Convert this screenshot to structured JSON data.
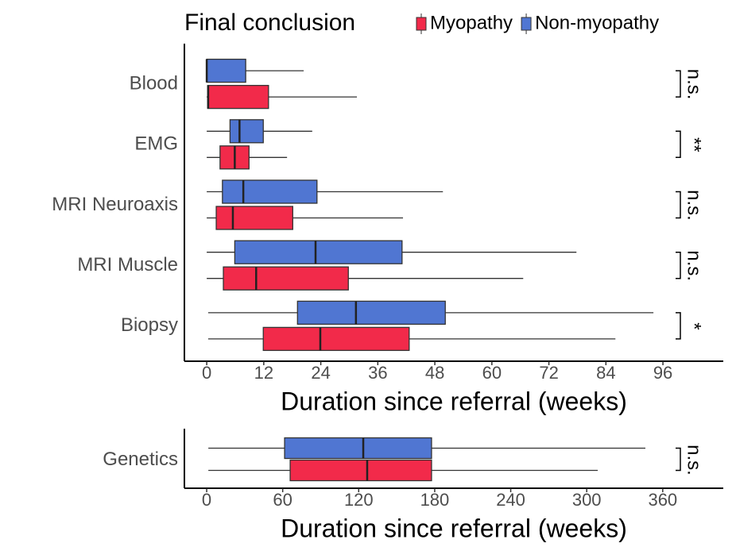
{
  "chart_data": [
    {
      "type": "boxplot",
      "legend_title": "Final conclusion",
      "categories": [
        "Blood",
        "EMG",
        "MRI Neuroaxis",
        "MRI Muscle",
        "Biopsy"
      ],
      "series": [
        {
          "name": "Myopathy",
          "color": "#f22a4a",
          "min": [
            0,
            0,
            0,
            0,
            0.3
          ],
          "q1": [
            0.2,
            2.8,
            2.0,
            3.5,
            11.9
          ],
          "median": [
            0.3,
            5.9,
            5.5,
            10.4,
            23.9
          ],
          "q3": [
            13.0,
            8.9,
            18.1,
            29.8,
            42.6
          ],
          "max": [
            31.6,
            16.9,
            41.3,
            66.6,
            86.0
          ]
        },
        {
          "name": "Non-myopathy",
          "color": "#5076d2",
          "min": [
            0,
            0,
            0,
            0,
            0.3
          ],
          "q1": [
            0,
            4.9,
            3.3,
            5.9,
            19.1
          ],
          "median": [
            0,
            6.9,
            7.7,
            22.9,
            31.4
          ],
          "q3": [
            8.2,
            11.9,
            23.2,
            41.1,
            50.2
          ],
          "max": [
            20.4,
            22.2,
            49.7,
            77.8,
            94.0
          ]
        }
      ],
      "significance": [
        "n.s.",
        "**",
        "n.s.",
        "n.s.",
        "*"
      ],
      "xlabel": "Duration since referral (weeks)",
      "xlim": [
        -4.7,
        108.7
      ],
      "xticks": [
        0,
        12,
        24,
        36,
        48,
        60,
        72,
        84,
        96
      ]
    },
    {
      "type": "boxplot",
      "categories": [
        "Genetics"
      ],
      "series": [
        {
          "color": "#f22a4a",
          "min": [
            1.3
          ],
          "q1": [
            65.9
          ],
          "median": [
            126.7
          ],
          "q3": [
            177.5
          ],
          "max": [
            308.7
          ]
        },
        {
          "color": "#5076d2",
          "min": [
            1.3
          ],
          "q1": [
            61.5
          ],
          "median": [
            123.6
          ],
          "q3": [
            177.5
          ],
          "max": [
            346.3
          ]
        }
      ],
      "significance": [
        "n.s."
      ],
      "xlabel": "Duration since referral (weeks)",
      "xlim": [
        -17.6,
        407.8
      ],
      "xticks": [
        0,
        60,
        120,
        180,
        240,
        300,
        360
      ]
    }
  ]
}
